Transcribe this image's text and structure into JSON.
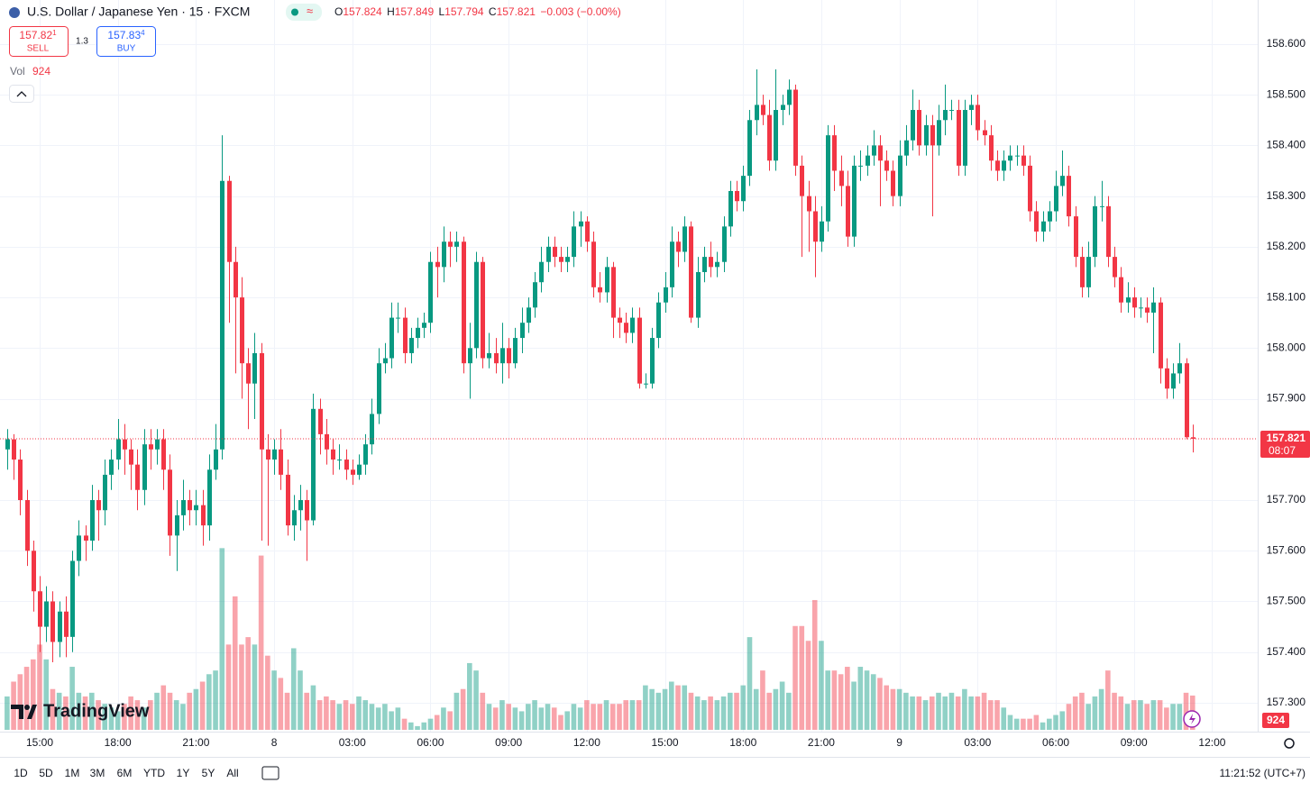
{
  "header": {
    "symbol": "U.S. Dollar / Japanese Yen · 15 · FXCM",
    "ohlc": [
      {
        "label": "O",
        "value": "157.824"
      },
      {
        "label": "H",
        "value": "157.849"
      },
      {
        "label": "L",
        "value": "157.794"
      },
      {
        "label": "C",
        "value": "157.821"
      }
    ],
    "change": "−0.003 (−0.00%)",
    "sell": {
      "price": "157.82",
      "pip": "1",
      "label": "SELL"
    },
    "spread": "1.3",
    "buy": {
      "price": "157.83",
      "pip": "4",
      "label": "BUY"
    },
    "vol_label": "Vol",
    "vol_value": "924"
  },
  "logo": "TradingView",
  "chart_data": {
    "type": "candlestick",
    "up_color": "#089981",
    "down_color": "#f23645",
    "open": [
      157.8,
      157.82,
      157.78,
      157.7,
      157.6,
      157.52,
      157.45,
      157.5,
      157.42,
      157.48,
      157.43,
      157.58,
      157.63,
      157.62,
      157.7,
      157.68,
      157.75,
      157.78,
      157.82,
      157.8,
      157.77,
      157.72,
      157.81,
      157.8,
      157.82,
      157.76,
      157.63,
      157.67,
      157.7,
      157.68,
      157.69,
      157.65,
      157.76,
      157.8,
      158.33,
      158.17,
      158.1,
      157.97,
      157.93,
      157.99,
      157.8,
      157.78,
      157.8,
      157.75,
      157.65,
      157.68,
      157.7,
      157.66,
      157.88,
      157.83,
      157.8,
      157.78,
      157.78,
      157.76,
      157.75,
      157.77,
      157.81,
      157.87,
      157.97,
      157.98,
      158.06,
      158.06,
      157.99,
      158.02,
      158.04,
      158.05,
      158.17,
      158.16,
      158.21,
      158.2,
      158.21,
      157.97,
      158.0,
      158.17,
      157.98,
      157.99,
      157.97,
      158.0,
      157.97,
      158.02,
      158.05,
      158.08,
      158.13,
      158.17,
      158.2,
      158.18,
      158.17,
      158.18,
      158.24,
      158.25,
      158.21,
      158.12,
      158.11,
      158.16,
      158.06,
      158.05,
      158.03,
      158.06,
      157.93,
      157.93,
      158.02,
      158.09,
      158.12,
      158.21,
      158.19,
      158.24,
      158.06,
      158.15,
      158.18,
      158.16,
      158.17,
      158.24,
      158.31,
      158.29,
      158.34,
      158.45,
      158.48,
      158.46,
      158.37,
      158.47,
      158.48,
      158.51,
      158.36,
      158.3,
      158.27,
      158.21,
      158.25,
      158.42,
      158.35,
      158.32,
      158.22,
      158.36,
      158.36,
      158.38,
      158.4,
      158.37,
      158.35,
      158.3,
      158.38,
      158.41,
      158.47,
      158.4,
      158.44,
      158.4,
      158.45,
      158.47,
      158.47,
      158.36,
      158.47,
      158.48,
      158.43,
      158.42,
      158.37,
      158.35,
      158.37,
      158.38,
      158.38,
      158.36,
      158.27,
      158.23,
      158.25,
      158.27,
      158.32,
      158.34,
      158.26,
      158.18,
      158.12,
      158.18,
      158.28,
      158.28,
      158.18,
      158.14,
      158.09,
      158.1,
      158.08,
      158.08,
      158.07,
      158.09,
      157.96,
      157.92,
      157.95,
      157.97,
      157.824
    ],
    "high": [
      157.84,
      157.83,
      157.8,
      157.72,
      157.62,
      157.55,
      157.53,
      157.52,
      157.5,
      157.51,
      157.6,
      157.66,
      157.65,
      157.73,
      157.72,
      157.78,
      157.8,
      157.86,
      157.85,
      157.82,
      157.8,
      157.84,
      157.84,
      157.84,
      157.84,
      157.79,
      157.7,
      157.74,
      157.72,
      157.72,
      157.72,
      157.79,
      157.85,
      158.42,
      158.34,
      158.2,
      158.14,
      158.0,
      158.03,
      158.01,
      157.83,
      157.82,
      157.84,
      157.78,
      157.71,
      157.73,
      157.72,
      157.91,
      157.9,
      157.86,
      157.82,
      157.81,
      157.8,
      157.78,
      157.79,
      157.83,
      157.9,
      158.0,
      158.01,
      158.09,
      158.09,
      158.08,
      158.04,
      158.06,
      158.07,
      158.19,
      158.2,
      158.24,
      158.23,
      158.23,
      158.22,
      158.05,
      158.19,
      158.18,
      158.03,
      158.02,
      158.05,
      158.02,
      158.04,
      158.08,
      158.1,
      158.15,
      158.2,
      158.22,
      158.22,
      158.2,
      158.2,
      158.27,
      158.27,
      158.26,
      158.23,
      158.15,
      158.18,
      158.17,
      158.08,
      158.07,
      158.08,
      158.08,
      157.95,
      158.04,
      158.11,
      158.15,
      158.24,
      158.23,
      158.26,
      158.25,
      158.18,
      158.2,
      158.21,
      158.19,
      158.26,
      158.33,
      158.33,
      158.36,
      158.47,
      158.55,
      158.5,
      158.49,
      158.55,
      158.5,
      158.53,
      158.52,
      158.38,
      158.33,
      158.3,
      158.28,
      158.44,
      158.44,
      158.38,
      158.35,
      158.38,
      158.39,
      158.4,
      158.43,
      158.42,
      158.39,
      158.37,
      158.41,
      158.44,
      158.51,
      158.49,
      158.46,
      158.46,
      158.48,
      158.52,
      158.49,
      158.49,
      158.49,
      158.5,
      158.5,
      158.45,
      158.44,
      158.39,
      158.39,
      158.4,
      158.4,
      158.4,
      158.38,
      158.29,
      158.27,
      158.29,
      158.35,
      158.39,
      158.36,
      158.28,
      158.2,
      158.21,
      158.3,
      158.33,
      158.3,
      158.2,
      158.16,
      158.13,
      158.12,
      158.1,
      158.1,
      158.12,
      158.1,
      157.98,
      157.97,
      158.01,
      157.98,
      157.849
    ],
    "low": [
      157.76,
      157.74,
      157.67,
      157.57,
      157.48,
      157.4,
      157.42,
      157.38,
      157.39,
      157.39,
      157.4,
      157.55,
      157.58,
      157.6,
      157.62,
      157.65,
      157.72,
      157.76,
      157.75,
      157.72,
      157.68,
      157.69,
      157.76,
      157.77,
      157.72,
      157.59,
      157.56,
      157.64,
      157.65,
      157.65,
      157.61,
      157.62,
      157.74,
      157.78,
      158.05,
      157.95,
      157.9,
      157.84,
      157.86,
      157.62,
      157.61,
      157.75,
      157.72,
      157.63,
      157.62,
      157.64,
      157.58,
      157.65,
      157.79,
      157.77,
      157.75,
      157.76,
      157.74,
      157.73,
      157.74,
      157.75,
      157.79,
      157.85,
      157.95,
      157.96,
      158.03,
      157.97,
      157.97,
      158.0,
      158.02,
      158.03,
      158.1,
      158.13,
      158.16,
      158.17,
      157.95,
      157.9,
      157.98,
      157.96,
      157.96,
      157.95,
      157.93,
      157.94,
      157.96,
      157.99,
      158.03,
      158.06,
      158.11,
      158.15,
      158.16,
      158.15,
      158.15,
      158.16,
      158.2,
      158.19,
      158.1,
      158.09,
      158.09,
      158.02,
      158.02,
      158.01,
      158.01,
      157.92,
      157.92,
      157.92,
      158.0,
      158.07,
      158.1,
      158.16,
      158.17,
      158.05,
      158.04,
      158.13,
      158.14,
      158.14,
      158.15,
      158.22,
      158.27,
      158.27,
      158.32,
      158.42,
      158.44,
      158.35,
      158.35,
      158.44,
      158.46,
      158.34,
      158.18,
      158.19,
      158.14,
      158.19,
      158.23,
      158.31,
      158.28,
      158.2,
      158.2,
      158.33,
      158.34,
      158.36,
      158.28,
      158.33,
      158.28,
      158.28,
      158.36,
      158.39,
      158.38,
      158.38,
      158.26,
      158.38,
      158.42,
      158.45,
      158.34,
      158.34,
      158.44,
      158.41,
      158.4,
      158.35,
      158.33,
      158.33,
      158.35,
      158.36,
      158.34,
      158.25,
      158.21,
      158.21,
      158.23,
      158.25,
      158.3,
      158.24,
      158.16,
      158.1,
      158.1,
      158.16,
      158.25,
      158.16,
      158.12,
      158.07,
      158.07,
      158.06,
      158.06,
      158.05,
      157.99,
      157.93,
      157.9,
      157.9,
      157.93,
      157.82,
      157.794
    ],
    "close": [
      157.82,
      157.78,
      157.7,
      157.6,
      157.52,
      157.45,
      157.5,
      157.42,
      157.48,
      157.43,
      157.58,
      157.63,
      157.62,
      157.7,
      157.68,
      157.75,
      157.78,
      157.82,
      157.8,
      157.77,
      157.72,
      157.81,
      157.8,
      157.82,
      157.76,
      157.63,
      157.67,
      157.7,
      157.68,
      157.69,
      157.65,
      157.76,
      157.8,
      158.33,
      158.17,
      158.1,
      157.97,
      157.93,
      157.99,
      157.8,
      157.78,
      157.8,
      157.75,
      157.65,
      157.68,
      157.7,
      157.66,
      157.88,
      157.83,
      157.8,
      157.78,
      157.78,
      157.76,
      157.75,
      157.77,
      157.81,
      157.87,
      157.97,
      157.98,
      158.06,
      158.06,
      157.99,
      158.02,
      158.04,
      158.05,
      158.17,
      158.16,
      158.21,
      158.2,
      158.21,
      157.97,
      158.0,
      158.17,
      157.98,
      157.99,
      157.97,
      158.0,
      157.97,
      158.02,
      158.05,
      158.08,
      158.13,
      158.17,
      158.2,
      158.18,
      158.17,
      158.18,
      158.24,
      158.25,
      158.21,
      158.12,
      158.11,
      158.16,
      158.06,
      158.05,
      158.03,
      158.06,
      157.93,
      157.93,
      158.02,
      158.09,
      158.12,
      158.21,
      158.19,
      158.24,
      158.06,
      158.15,
      158.18,
      158.16,
      158.17,
      158.24,
      158.31,
      158.29,
      158.34,
      158.45,
      158.48,
      158.46,
      158.37,
      158.47,
      158.48,
      158.51,
      158.36,
      158.3,
      158.27,
      158.21,
      158.25,
      158.42,
      158.35,
      158.32,
      158.22,
      158.36,
      158.36,
      158.38,
      158.4,
      158.37,
      158.35,
      158.3,
      158.38,
      158.41,
      158.47,
      158.4,
      158.44,
      158.4,
      158.45,
      158.47,
      158.47,
      158.36,
      158.47,
      158.48,
      158.43,
      158.42,
      158.37,
      158.35,
      158.37,
      158.38,
      158.38,
      158.36,
      158.27,
      158.23,
      158.25,
      158.27,
      158.32,
      158.34,
      158.26,
      158.18,
      158.12,
      158.18,
      158.28,
      158.28,
      158.18,
      158.14,
      158.09,
      158.1,
      158.08,
      158.08,
      158.07,
      158.09,
      157.96,
      157.92,
      157.95,
      157.97,
      157.824,
      157.821
    ],
    "volume": [
      900,
      1300,
      1500,
      1700,
      1900,
      2300,
      1900,
      1100,
      1000,
      900,
      1700,
      1000,
      900,
      1000,
      800,
      700,
      600,
      500,
      700,
      900,
      800,
      600,
      800,
      1000,
      1200,
      1000,
      800,
      700,
      1000,
      1100,
      1300,
      1500,
      1600,
      4900,
      2300,
      3600,
      2300,
      2500,
      2300,
      4700,
      2000,
      1600,
      1400,
      1000,
      2200,
      1600,
      1000,
      1200,
      800,
      900,
      800,
      700,
      800,
      700,
      900,
      800,
      700,
      600,
      700,
      500,
      600,
      300,
      200,
      100,
      200,
      300,
      400,
      600,
      500,
      1000,
      1100,
      1800,
      1600,
      1000,
      700,
      600,
      800,
      700,
      600,
      500,
      700,
      800,
      600,
      700,
      600,
      400,
      500,
      700,
      600,
      800,
      700,
      700,
      800,
      700,
      700,
      800,
      800,
      800,
      1200,
      1100,
      1000,
      1100,
      1300,
      1200,
      1200,
      1000,
      900,
      800,
      900,
      800,
      900,
      1000,
      1000,
      1200,
      2500,
      1100,
      1600,
      1000,
      1100,
      1300,
      1000,
      2800,
      2800,
      2400,
      3500,
      2400,
      1600,
      1600,
      1500,
      1700,
      1300,
      1700,
      1600,
      1500,
      1400,
      1200,
      1100,
      1100,
      1000,
      900,
      900,
      800,
      900,
      1000,
      900,
      1000,
      900,
      1100,
      900,
      900,
      1000,
      800,
      800,
      600,
      400,
      300,
      300,
      300,
      400,
      200,
      300,
      400,
      500,
      700,
      900,
      1000,
      700,
      900,
      1100,
      1600,
      1000,
      900,
      700,
      800,
      800,
      700,
      800,
      800,
      600,
      700,
      700,
      1000,
      924
    ],
    "xlim": [
      -1.09,
      192
    ],
    "xticks": [
      {
        "value": 5,
        "label": "15:00"
      },
      {
        "value": 17,
        "label": "18:00"
      },
      {
        "value": 29,
        "label": "21:00"
      },
      {
        "value": 41,
        "label": "8"
      },
      {
        "value": 53,
        "label": "03:00"
      },
      {
        "value": 65,
        "label": "06:00"
      },
      {
        "value": 77,
        "label": "09:00"
      },
      {
        "value": 89,
        "label": "12:00"
      },
      {
        "value": 101,
        "label": "15:00"
      },
      {
        "value": 113,
        "label": "18:00"
      },
      {
        "value": 125,
        "label": "21:00"
      },
      {
        "value": 137,
        "label": "9"
      },
      {
        "value": 149,
        "label": "03:00"
      },
      {
        "value": 161,
        "label": "06:00"
      },
      {
        "value": 173,
        "label": "09:00"
      },
      {
        "value": 185,
        "label": "12:00"
      }
    ],
    "ylim": [
      157.243,
      158.687
    ],
    "yticks": [
      {
        "value": 157.3,
        "label": "157.300"
      },
      {
        "value": 157.4,
        "label": "157.400"
      },
      {
        "value": 157.5,
        "label": "157.500"
      },
      {
        "value": 157.6,
        "label": "157.600"
      },
      {
        "value": 157.7,
        "label": "157.700"
      },
      {
        "value": 157.9,
        "label": "157.900"
      },
      {
        "value": 158.0,
        "label": "158.000"
      },
      {
        "value": 158.1,
        "label": "158.100"
      },
      {
        "value": 158.2,
        "label": "158.200"
      },
      {
        "value": 158.3,
        "label": "158.300"
      },
      {
        "value": 158.4,
        "label": "158.400"
      },
      {
        "value": 158.5,
        "label": "158.500"
      },
      {
        "value": 158.6,
        "label": "158.600"
      }
    ],
    "grid": true,
    "last_price": {
      "value": 157.821,
      "label": "157.821"
    },
    "countdown": "08:07"
  },
  "footer": {
    "ranges": [
      "1D",
      "5D",
      "1M",
      "3M",
      "6M",
      "YTD",
      "1Y",
      "5Y",
      "All"
    ],
    "clock": "11:21:52 (UTC+7)"
  }
}
